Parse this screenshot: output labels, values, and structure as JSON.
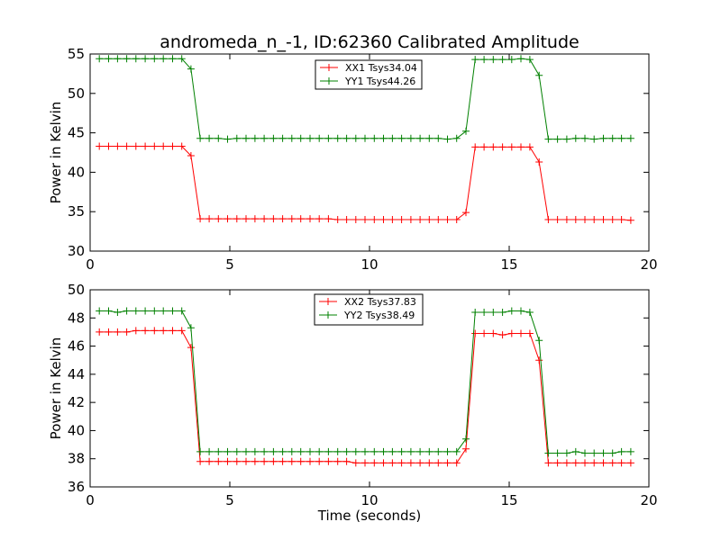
{
  "figure": {
    "title": "andromeda_n_-1, ID:62360 Calibrated Amplitude"
  },
  "chart_data": [
    {
      "type": "line",
      "title": "andromeda_n_-1, ID:62360 Calibrated Amplitude",
      "xlabel": "",
      "ylabel": "Power in Kelvin",
      "xlim": [
        0,
        20
      ],
      "ylim": [
        30,
        55
      ],
      "xticks": [
        "0",
        "5",
        "10",
        "15",
        "20"
      ],
      "yticks": [
        "30",
        "35",
        "40",
        "45",
        "50",
        "55"
      ],
      "xtick_values": [
        0,
        5,
        10,
        15,
        20
      ],
      "ytick_values": [
        30,
        35,
        40,
        45,
        50,
        55
      ],
      "grid": false,
      "legend_position": "top-center",
      "x": [
        0.33,
        0.66,
        0.98,
        1.31,
        1.64,
        1.97,
        2.3,
        2.62,
        2.95,
        3.28,
        3.61,
        3.94,
        4.26,
        4.59,
        4.92,
        5.25,
        5.58,
        5.9,
        6.23,
        6.56,
        6.89,
        7.22,
        7.54,
        7.87,
        8.2,
        8.53,
        8.86,
        9.18,
        9.51,
        9.84,
        10.17,
        10.5,
        10.82,
        11.15,
        11.48,
        11.81,
        12.14,
        12.46,
        12.79,
        13.12,
        13.45,
        13.78,
        14.1,
        14.43,
        14.76,
        15.09,
        15.42,
        15.74,
        16.07,
        16.4,
        16.73,
        17.06,
        17.38,
        17.71,
        18.04,
        18.37,
        18.7,
        19.02,
        19.35
      ],
      "series": [
        {
          "name": "XX1 Tsys34.04",
          "color": "#ff0000",
          "values": [
            43.3,
            43.3,
            43.3,
            43.3,
            43.3,
            43.3,
            43.3,
            43.3,
            43.3,
            43.3,
            42.1,
            34.1,
            34.1,
            34.1,
            34.1,
            34.1,
            34.1,
            34.1,
            34.1,
            34.1,
            34.1,
            34.1,
            34.1,
            34.1,
            34.1,
            34.1,
            34.0,
            34.0,
            34.0,
            34.0,
            34.0,
            34.0,
            34.0,
            34.0,
            34.0,
            34.0,
            34.0,
            34.0,
            34.0,
            34.0,
            34.9,
            43.2,
            43.2,
            43.2,
            43.2,
            43.2,
            43.2,
            43.2,
            41.3,
            34.0,
            34.0,
            34.0,
            34.0,
            34.0,
            34.0,
            34.0,
            34.0,
            34.0,
            33.9
          ]
        },
        {
          "name": "YY1 Tsys44.26",
          "color": "#008000",
          "values": [
            54.4,
            54.4,
            54.4,
            54.4,
            54.4,
            54.4,
            54.4,
            54.4,
            54.4,
            54.4,
            53.1,
            44.3,
            44.3,
            44.3,
            44.2,
            44.3,
            44.3,
            44.3,
            44.3,
            44.3,
            44.3,
            44.3,
            44.3,
            44.3,
            44.3,
            44.3,
            44.3,
            44.3,
            44.3,
            44.3,
            44.3,
            44.3,
            44.3,
            44.3,
            44.3,
            44.3,
            44.3,
            44.3,
            44.2,
            44.3,
            45.2,
            54.3,
            54.3,
            54.3,
            54.3,
            54.3,
            54.4,
            54.3,
            52.3,
            44.2,
            44.2,
            44.2,
            44.3,
            44.3,
            44.2,
            44.3,
            44.3,
            44.3,
            44.3
          ]
        }
      ]
    },
    {
      "type": "line",
      "title": "",
      "xlabel": "Time (seconds)",
      "ylabel": "Power in Kelvin",
      "xlim": [
        0,
        20
      ],
      "ylim": [
        36,
        50
      ],
      "xticks": [
        "0",
        "5",
        "10",
        "15",
        "20"
      ],
      "yticks": [
        "36",
        "38",
        "40",
        "42",
        "44",
        "46",
        "48",
        "50"
      ],
      "xtick_values": [
        0,
        5,
        10,
        15,
        20
      ],
      "ytick_values": [
        36,
        38,
        40,
        42,
        44,
        46,
        48,
        50
      ],
      "grid": false,
      "legend_position": "top-center",
      "x": [
        0.33,
        0.66,
        0.98,
        1.31,
        1.64,
        1.97,
        2.3,
        2.62,
        2.95,
        3.28,
        3.61,
        3.94,
        4.26,
        4.59,
        4.92,
        5.25,
        5.58,
        5.9,
        6.23,
        6.56,
        6.89,
        7.22,
        7.54,
        7.87,
        8.2,
        8.53,
        8.86,
        9.18,
        9.51,
        9.84,
        10.17,
        10.5,
        10.82,
        11.15,
        11.48,
        11.81,
        12.14,
        12.46,
        12.79,
        13.12,
        13.45,
        13.78,
        14.1,
        14.43,
        14.76,
        15.09,
        15.42,
        15.74,
        16.07,
        16.4,
        16.73,
        17.06,
        17.38,
        17.71,
        18.04,
        18.37,
        18.7,
        19.02,
        19.35
      ],
      "series": [
        {
          "name": "XX2 Tsys37.83",
          "color": "#ff0000",
          "values": [
            47.0,
            47.0,
            47.0,
            47.0,
            47.1,
            47.1,
            47.1,
            47.1,
            47.1,
            47.1,
            45.9,
            37.8,
            37.8,
            37.8,
            37.8,
            37.8,
            37.8,
            37.8,
            37.8,
            37.8,
            37.8,
            37.8,
            37.8,
            37.8,
            37.8,
            37.8,
            37.8,
            37.8,
            37.7,
            37.7,
            37.7,
            37.7,
            37.7,
            37.7,
            37.7,
            37.7,
            37.7,
            37.7,
            37.7,
            37.7,
            38.7,
            46.9,
            46.9,
            46.9,
            46.8,
            46.9,
            46.9,
            46.9,
            45.0,
            37.7,
            37.7,
            37.7,
            37.7,
            37.7,
            37.7,
            37.7,
            37.7,
            37.7,
            37.7
          ]
        },
        {
          "name": "YY2 Tsys38.49",
          "color": "#008000",
          "values": [
            48.5,
            48.5,
            48.4,
            48.5,
            48.5,
            48.5,
            48.5,
            48.5,
            48.5,
            48.5,
            47.3,
            38.5,
            38.5,
            38.5,
            38.5,
            38.5,
            38.5,
            38.5,
            38.5,
            38.5,
            38.5,
            38.5,
            38.5,
            38.5,
            38.5,
            38.5,
            38.5,
            38.5,
            38.5,
            38.5,
            38.5,
            38.5,
            38.5,
            38.5,
            38.5,
            38.5,
            38.5,
            38.5,
            38.5,
            38.5,
            39.4,
            48.4,
            48.4,
            48.4,
            48.4,
            48.5,
            48.5,
            48.4,
            46.4,
            38.4,
            38.4,
            38.4,
            38.5,
            38.4,
            38.4,
            38.4,
            38.4,
            38.5,
            38.5
          ]
        }
      ]
    }
  ]
}
